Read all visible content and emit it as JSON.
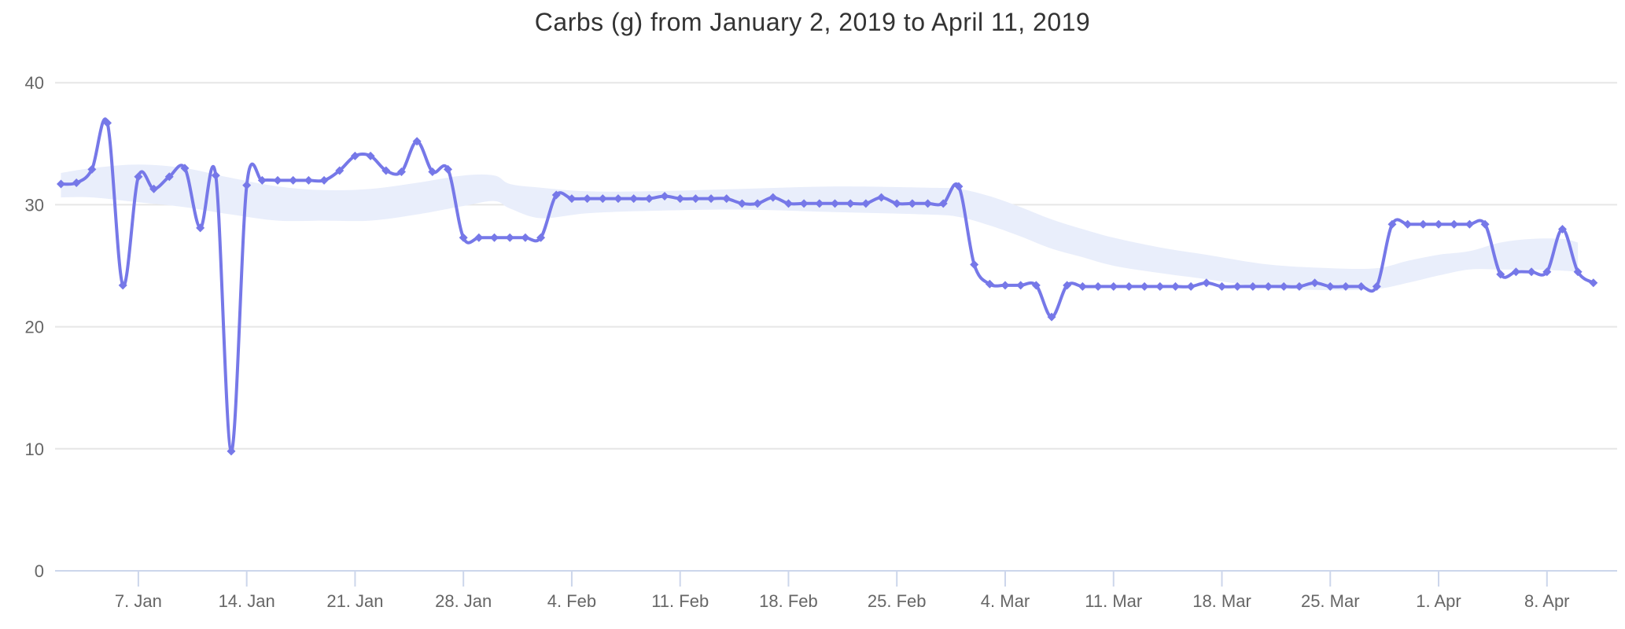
{
  "title": "Carbs (g) from January 2, 2019 to April 11, 2019",
  "colors": {
    "series_color": "#7678e8",
    "band_color": "#e9eefb",
    "grid_color": "#e6e6e6",
    "axis_line_color": "#ccd6eb",
    "title_color": "#333333",
    "label_color": "#666666",
    "background": "#ffffff"
  },
  "chart_data": {
    "type": "line",
    "title": "Carbs (g) from January 2, 2019 to April 11, 2019",
    "xlabel": "",
    "ylabel": "",
    "x_unit": "day",
    "start_date": "2019-01-02",
    "end_date": "2019-04-11",
    "ylim": [
      0,
      40
    ],
    "y_ticks": [
      0,
      10,
      20,
      30,
      40
    ],
    "grid": "horizontal",
    "legend": "none",
    "marker_shape": "diamond",
    "x_ticks": [
      {
        "label": "7. Jan",
        "day": 5
      },
      {
        "label": "14. Jan",
        "day": 12
      },
      {
        "label": "21. Jan",
        "day": 19
      },
      {
        "label": "28. Jan",
        "day": 26
      },
      {
        "label": "4. Feb",
        "day": 33
      },
      {
        "label": "11. Feb",
        "day": 40
      },
      {
        "label": "18. Feb",
        "day": 47
      },
      {
        "label": "25. Feb",
        "day": 54
      },
      {
        "label": "4. Mar",
        "day": 61
      },
      {
        "label": "11. Mar",
        "day": 68
      },
      {
        "label": "18. Mar",
        "day": 75
      },
      {
        "label": "25. Mar",
        "day": 82
      },
      {
        "label": "1. Apr",
        "day": 89
      },
      {
        "label": "8. Apr",
        "day": 96
      }
    ],
    "series": [
      {
        "name": "Carbs (g)",
        "type": "spline",
        "values": [
          31.7,
          31.8,
          32.9,
          36.7,
          23.4,
          32.3,
          31.3,
          32.3,
          33.0,
          28.1,
          32.4,
          9.8,
          31.6,
          32.0,
          32.0,
          32.0,
          32.0,
          32.0,
          32.8,
          34.0,
          34.0,
          32.8,
          32.7,
          35.2,
          32.7,
          32.9,
          27.3,
          27.3,
          27.3,
          27.3,
          27.3,
          27.3,
          30.8,
          30.5,
          30.5,
          30.5,
          30.5,
          30.5,
          30.5,
          30.7,
          30.5,
          30.5,
          30.5,
          30.5,
          30.1,
          30.1,
          30.6,
          30.1,
          30.1,
          30.1,
          30.1,
          30.1,
          30.1,
          30.6,
          30.1,
          30.1,
          30.1,
          30.1,
          31.5,
          25.1,
          23.5,
          23.4,
          23.4,
          23.4,
          20.8,
          23.4,
          23.3,
          23.3,
          23.3,
          23.3,
          23.3,
          23.3,
          23.3,
          23.3,
          23.6,
          23.3,
          23.3,
          23.3,
          23.3,
          23.3,
          23.3,
          23.6,
          23.3,
          23.3,
          23.3,
          23.3,
          28.4,
          28.4,
          28.4,
          28.4,
          28.4,
          28.4,
          28.4,
          24.3,
          24.5,
          24.5,
          24.5,
          28.0,
          24.5,
          23.6
        ]
      },
      {
        "name": "smoothed range band",
        "type": "arearange",
        "points_day_low_high": [
          [
            0,
            30.6,
            32.6
          ],
          [
            2,
            30.6,
            33.0
          ],
          [
            5,
            30.2,
            33.3
          ],
          [
            8,
            29.8,
            33.0
          ],
          [
            11,
            29.2,
            32.2
          ],
          [
            14,
            28.7,
            31.5
          ],
          [
            17,
            28.7,
            31.2
          ],
          [
            20,
            28.7,
            31.3
          ],
          [
            23,
            29.2,
            31.8
          ],
          [
            26,
            29.9,
            32.4
          ],
          [
            28,
            30.3,
            32.4
          ],
          [
            29,
            29.7,
            31.7
          ],
          [
            31,
            28.9,
            31.4
          ],
          [
            34,
            29.3,
            31.1
          ],
          [
            38,
            29.5,
            31.1
          ],
          [
            44,
            29.6,
            31.3
          ],
          [
            50,
            29.4,
            31.5
          ],
          [
            56,
            29.2,
            31.4
          ],
          [
            58,
            29.0,
            31.3
          ],
          [
            60,
            28.3,
            30.7
          ],
          [
            62,
            27.4,
            29.8
          ],
          [
            64,
            26.4,
            28.8
          ],
          [
            66,
            25.7,
            28.0
          ],
          [
            68,
            25.0,
            27.3
          ],
          [
            71,
            24.4,
            26.5
          ],
          [
            74,
            23.9,
            25.9
          ],
          [
            78,
            23.2,
            25.1
          ],
          [
            82,
            23.0,
            24.8
          ],
          [
            85,
            23.1,
            24.8
          ],
          [
            87,
            23.6,
            25.4
          ],
          [
            89,
            24.2,
            25.9
          ],
          [
            91,
            24.7,
            26.2
          ],
          [
            93,
            24.7,
            26.9
          ],
          [
            95,
            24.7,
            27.2
          ],
          [
            97,
            24.6,
            27.2
          ],
          [
            98,
            24.5,
            26.9
          ]
        ]
      }
    ]
  }
}
